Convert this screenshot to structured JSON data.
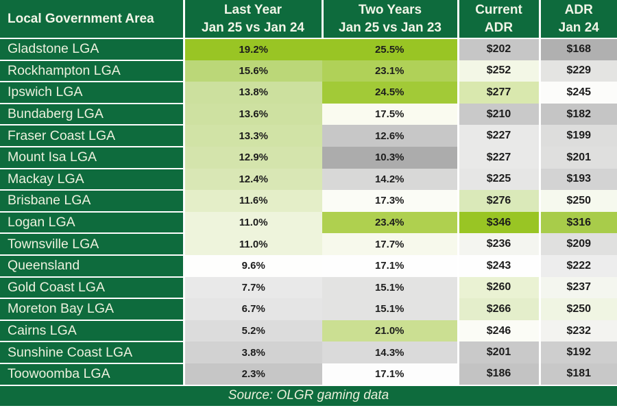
{
  "colors": {
    "header_green": "#0E6B3D",
    "separator": "#FFFFFF",
    "heat_green_max": "#99C524",
    "heat_mid_white": "#FEFEFE",
    "heat_gray_min": "#ACACAC",
    "value_text": "#1C1C1C",
    "label_text": "#EDF1DE"
  },
  "table": {
    "headers": [
      {
        "line1": "Local Government Area",
        "line2": ""
      },
      {
        "line1": "Last Year",
        "line2": "Jan 25 vs Jan 24"
      },
      {
        "line1": "Two Years",
        "line2": "Jan 25 vs Jan 23"
      },
      {
        "line1": "Current",
        "line2": "ADR"
      },
      {
        "line1": "ADR",
        "line2": "Jan 24"
      }
    ],
    "rows": [
      {
        "name": "Gladstone LGA",
        "last_year": "19.2%",
        "last_year_bg": "#99C524",
        "two_years": "25.5%",
        "two_years_bg": "#99C524",
        "current_adr": "$202",
        "current_adr_bg": "#C6C6C6",
        "adr_jan24": "$168",
        "adr_jan24_bg": "#B0B0B0"
      },
      {
        "name": "Rockhampton LGA",
        "last_year": "15.6%",
        "last_year_bg": "#BBD778",
        "two_years": "23.1%",
        "two_years_bg": "#B0D158",
        "current_adr": "$252",
        "current_adr_bg": "#F3F7E6",
        "adr_jan24": "$229",
        "adr_jan24_bg": "#E4E4E2"
      },
      {
        "name": "Ipswich LGA",
        "last_year": "13.8%",
        "last_year_bg": "#CCE09E",
        "two_years": "24.5%",
        "two_years_bg": "#A2CA37",
        "current_adr": "$277",
        "current_adr_bg": "#D9E8AE",
        "adr_jan24": "$245",
        "adr_jan24_bg": "#FCFCFA"
      },
      {
        "name": "Bundaberg LGA",
        "last_year": "13.6%",
        "last_year_bg": "#CEE1A1",
        "two_years": "17.5%",
        "two_years_bg": "#FAFBF0",
        "current_adr": "$210",
        "current_adr_bg": "#C9C9C9",
        "adr_jan24": "$182",
        "adr_jan24_bg": "#C5C5C5"
      },
      {
        "name": "Fraser Coast LGA",
        "last_year": "13.3%",
        "last_year_bg": "#D1E3A6",
        "two_years": "12.6%",
        "two_years_bg": "#C7C7C7",
        "current_adr": "$227",
        "current_adr_bg": "#E9E9E8",
        "adr_jan24": "$199",
        "adr_jan24_bg": "#DDDDDC"
      },
      {
        "name": "Mount Isa LGA",
        "last_year": "12.9%",
        "last_year_bg": "#D4E4AC",
        "two_years": "10.3%",
        "two_years_bg": "#ACACAC",
        "current_adr": "$227",
        "current_adr_bg": "#E9E9E8",
        "adr_jan24": "$201",
        "adr_jan24_bg": "#DFDFDE"
      },
      {
        "name": "Mackay LGA",
        "last_year": "12.4%",
        "last_year_bg": "#D9E7B5",
        "two_years": "14.2%",
        "two_years_bg": "#D8D8D7",
        "current_adr": "$225",
        "current_adr_bg": "#E6E6E5",
        "adr_jan24": "$193",
        "adr_jan24_bg": "#D3D3D3"
      },
      {
        "name": "Brisbane LGA",
        "last_year": "11.6%",
        "last_year_bg": "#E4EEC8",
        "two_years": "17.3%",
        "two_years_bg": "#FBFCF6",
        "current_adr": "$276",
        "current_adr_bg": "#DAE9B9",
        "adr_jan24": "$250",
        "adr_jan24_bg": "#F6F9EE"
      },
      {
        "name": "Logan LGA",
        "last_year": "11.0%",
        "last_year_bg": "#EEF4DC",
        "two_years": "23.4%",
        "two_years_bg": "#AFD04F",
        "current_adr": "$346",
        "current_adr_bg": "#99C524",
        "adr_jan24": "$316",
        "adr_jan24_bg": "#A8CC4A"
      },
      {
        "name": "Townsville LGA",
        "last_year": "11.0%",
        "last_year_bg": "#EEF4DC",
        "two_years": "17.7%",
        "two_years_bg": "#F7F9EC",
        "current_adr": "$236",
        "current_adr_bg": "#F4F5F0",
        "adr_jan24": "$209",
        "adr_jan24_bg": "#E0E0DF"
      },
      {
        "name": "Queensland",
        "last_year": "9.6%",
        "last_year_bg": "#FEFEFD",
        "two_years": "17.1%",
        "two_years_bg": "#FEFEFE",
        "current_adr": "$243",
        "current_adr_bg": "#FEFEFE",
        "adr_jan24": "$222",
        "adr_jan24_bg": "#EDEDED"
      },
      {
        "name": "Gold Coast LGA",
        "last_year": "7.7%",
        "last_year_bg": "#E9E9E9",
        "two_years": "15.1%",
        "two_years_bg": "#E3E3E2",
        "current_adr": "$260",
        "current_adr_bg": "#EAF2D3",
        "adr_jan24": "$237",
        "adr_jan24_bg": "#F4F6EF"
      },
      {
        "name": "Moreton Bay LGA",
        "last_year": "6.7%",
        "last_year_bg": "#E5E5E5",
        "two_years": "15.1%",
        "two_years_bg": "#E3E3E2",
        "current_adr": "$266",
        "current_adr_bg": "#E4EECB",
        "adr_jan24": "$250",
        "adr_jan24_bg": "#F0F5E3"
      },
      {
        "name": "Cairns LGA",
        "last_year": "5.2%",
        "last_year_bg": "#DCDCDC",
        "two_years": "21.0%",
        "two_years_bg": "#CBDF92",
        "current_adr": "$246",
        "current_adr_bg": "#FBFCF6",
        "adr_jan24": "$232",
        "adr_jan24_bg": "#F3F3F0"
      },
      {
        "name": "Sunshine Coast LGA",
        "last_year": "3.8%",
        "last_year_bg": "#D2D2D2",
        "two_years": "14.3%",
        "two_years_bg": "#DADADA",
        "current_adr": "$201",
        "current_adr_bg": "#C9C9C9",
        "adr_jan24": "$192",
        "adr_jan24_bg": "#CECECE"
      },
      {
        "name": "Toowoomba LGA",
        "last_year": "2.3%",
        "last_year_bg": "#C6C6C6",
        "two_years": "17.1%",
        "two_years_bg": "#FDFDFD",
        "current_adr": "$186",
        "current_adr_bg": "#C3C3C3",
        "adr_jan24": "$181",
        "adr_jan24_bg": "#C8C8C8"
      }
    ]
  },
  "footer": {
    "source": "Source: OLGR gaming data"
  },
  "chart_data": {
    "type": "table",
    "columns": [
      "Local Government Area",
      "Last Year Jan 25 vs Jan 24 (%)",
      "Two Years Jan 25 vs Jan 23 (%)",
      "Current ADR ($)",
      "ADR Jan 24 ($)"
    ],
    "rows": [
      [
        "Gladstone LGA",
        19.2,
        25.5,
        202,
        168
      ],
      [
        "Rockhampton LGA",
        15.6,
        23.1,
        252,
        229
      ],
      [
        "Ipswich LGA",
        13.8,
        24.5,
        277,
        245
      ],
      [
        "Bundaberg LGA",
        13.6,
        17.5,
        210,
        182
      ],
      [
        "Fraser Coast LGA",
        13.3,
        12.6,
        227,
        199
      ],
      [
        "Mount Isa LGA",
        12.9,
        10.3,
        227,
        201
      ],
      [
        "Mackay LGA",
        12.4,
        14.2,
        225,
        193
      ],
      [
        "Brisbane LGA",
        11.6,
        17.3,
        276,
        250
      ],
      [
        "Logan LGA",
        11.0,
        23.4,
        346,
        316
      ],
      [
        "Townsville LGA",
        11.0,
        17.7,
        236,
        209
      ],
      [
        "Queensland",
        9.6,
        17.1,
        243,
        222
      ],
      [
        "Gold Coast LGA",
        7.7,
        15.1,
        260,
        237
      ],
      [
        "Moreton Bay LGA",
        6.7,
        15.1,
        266,
        250
      ],
      [
        "Cairns LGA",
        5.2,
        21.0,
        246,
        232
      ],
      [
        "Sunshine Coast LGA",
        3.8,
        14.3,
        201,
        192
      ],
      [
        "Toowoomba LGA",
        2.3,
        17.1,
        186,
        181
      ]
    ],
    "legend": "cell shading: green = high, white = mid, gray = low (per column conditional formatting)",
    "source": "Source: OLGR gaming data"
  }
}
